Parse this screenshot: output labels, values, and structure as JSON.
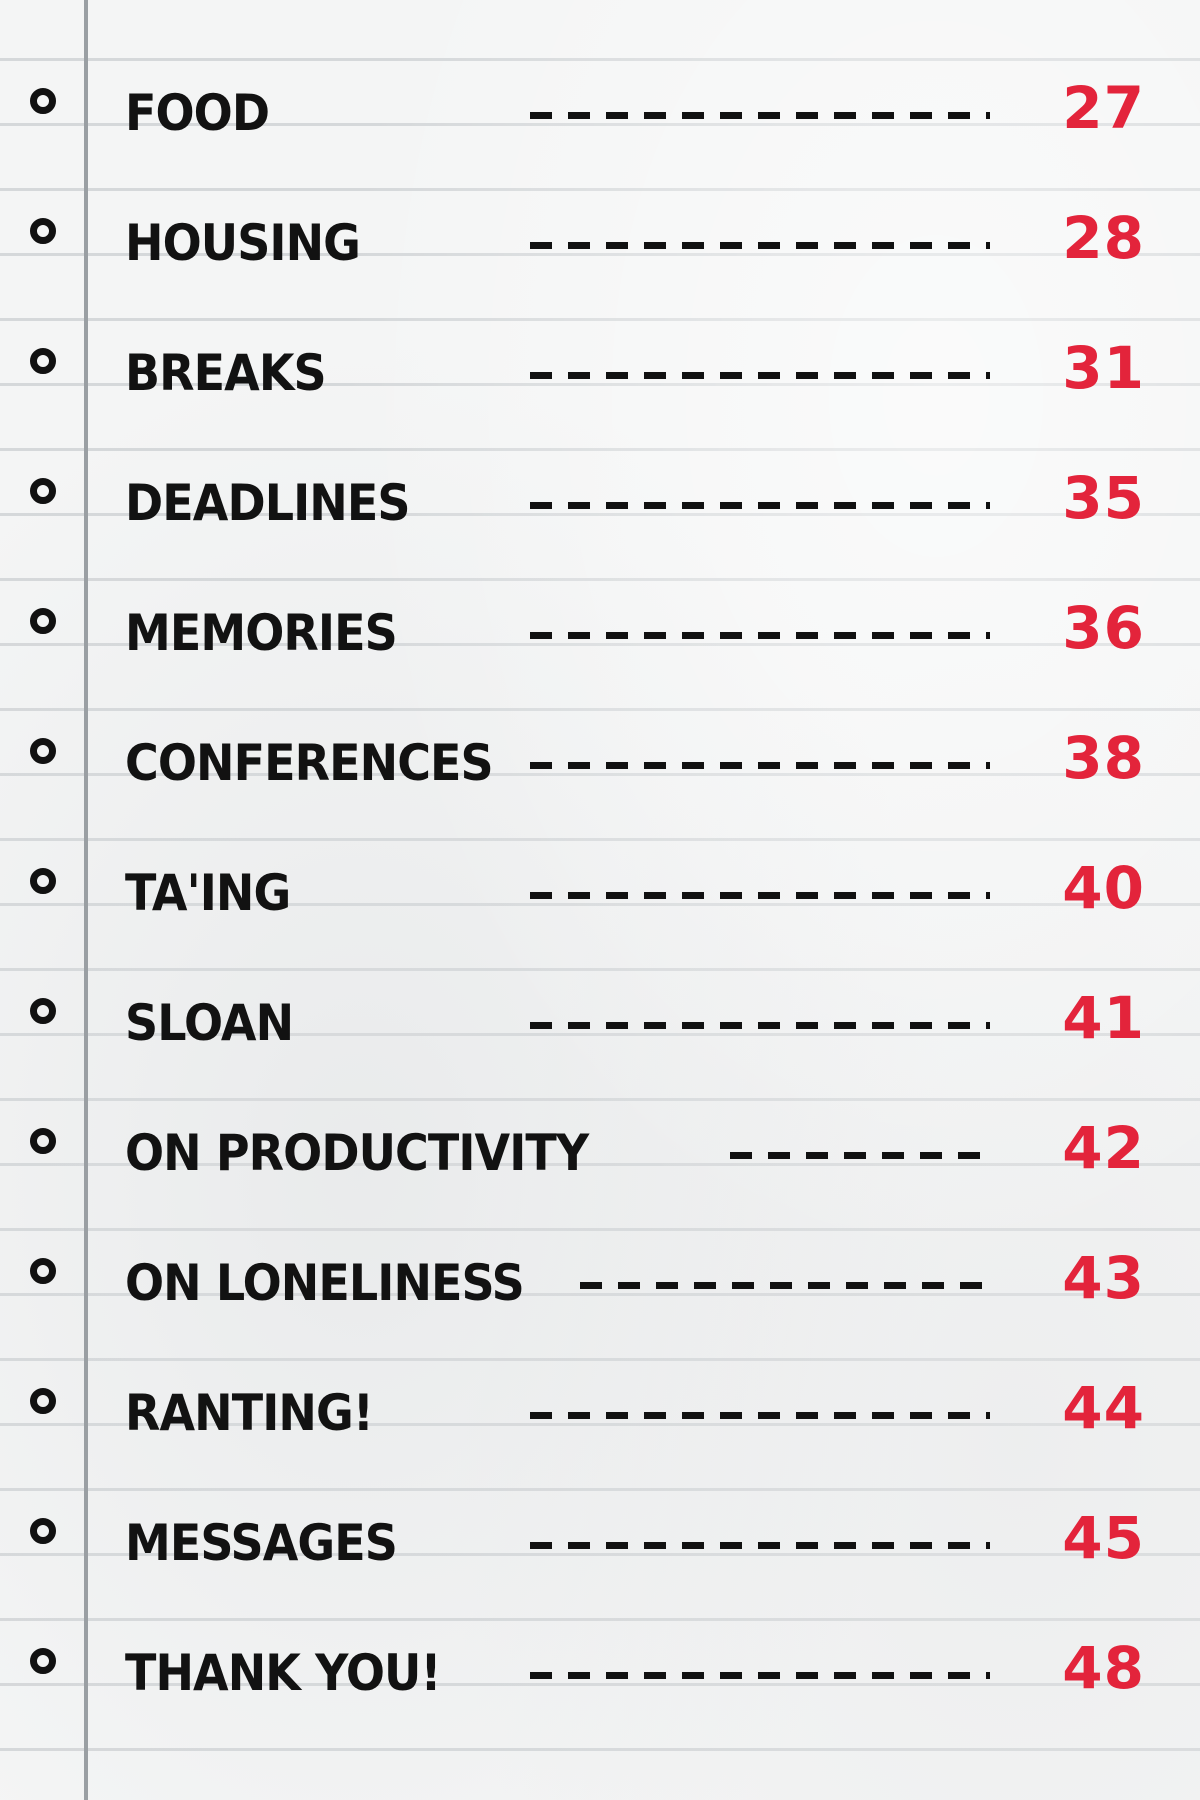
{
  "colors": {
    "paper": "#f4f5f5",
    "rule_line": "#d5d8da",
    "margin_line": "#9a9fa3",
    "ink": "#121212",
    "page_number": "#e3243b"
  },
  "toc": {
    "entries": [
      {
        "title": "FOOD",
        "page": "27"
      },
      {
        "title": "HOUSING",
        "page": "28"
      },
      {
        "title": "BREAKS",
        "page": "31"
      },
      {
        "title": "DEADLINES",
        "page": "35"
      },
      {
        "title": "MEMORIES",
        "page": "36"
      },
      {
        "title": "CONFERENCES",
        "page": "38"
      },
      {
        "title": "TA'ING",
        "page": "40"
      },
      {
        "title": "SLOAN",
        "page": "41"
      },
      {
        "title": "ON PRODUCTIVITY",
        "page": "42"
      },
      {
        "title": "ON LONELINESS",
        "page": "43"
      },
      {
        "title": "RANTING!",
        "page": "44"
      },
      {
        "title": "MESSAGES",
        "page": "45"
      },
      {
        "title": "THANK YOU!",
        "page": "48"
      }
    ]
  }
}
